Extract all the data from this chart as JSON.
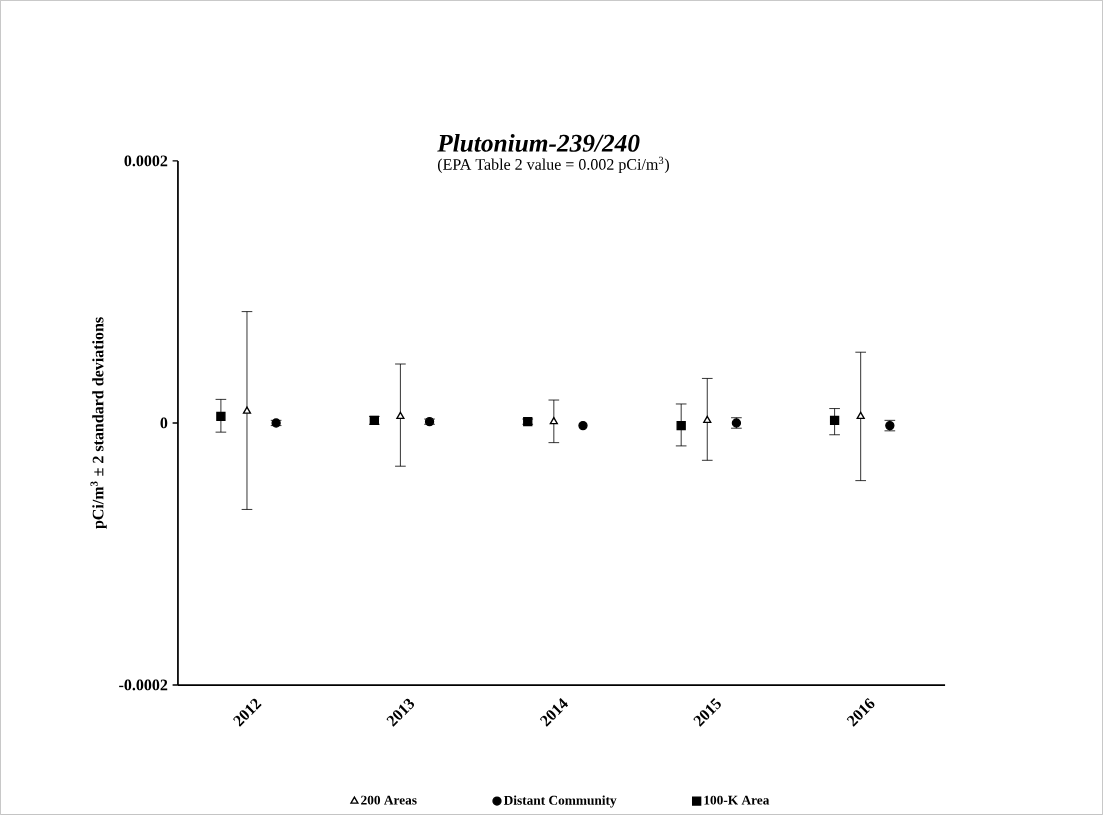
{
  "chart_data": {
    "type": "scatter",
    "title": "Plutonium-239/240",
    "subtitle": "(EPA Table 2 value = 0.002 pCi/m$^{3}$)",
    "ylabel": "pCi/m$^{3}$ ± 2 standard deviations",
    "categories": [
      "2012",
      "2013",
      "2014",
      "2015",
      "2016"
    ],
    "series": [
      {
        "name": "200 Areas",
        "color": "#000000",
        "marker": "triangle",
        "values": [
          9e-06,
          5e-06,
          1e-06,
          2e-06,
          5e-06
        ],
        "errors": [
          [
            -6.6e-05,
            8.5e-05
          ],
          [
            -3.3e-05,
            4.5e-05
          ],
          [
            -1.5e-05,
            1.75e-05
          ],
          [
            -2.85e-05,
            3.4e-05
          ],
          [
            -4.4e-05,
            5.4e-05
          ]
        ]
      },
      {
        "name": "Distant  Community",
        "color": "#000000",
        "marker": "circle",
        "values": [
          0.0,
          1e-06,
          -2e-06,
          0.0,
          -2e-06
        ],
        "errors": [
          [
            -2e-06,
            2e-06
          ],
          [
            -1e-06,
            3e-06
          ],
          null,
          [
            -4e-06,
            4e-06
          ],
          [
            -6e-06,
            2e-06
          ]
        ]
      },
      {
        "name": "100-K Area",
        "color": "#000000",
        "marker": "square",
        "values": [
          5e-06,
          2e-06,
          1e-06,
          -2e-06,
          2e-06
        ],
        "errors": [
          [
            -7e-06,
            1.8e-05
          ],
          [
            -1e-06,
            5e-06
          ],
          [
            -1e-06,
            3e-06
          ],
          [
            -1.75e-05,
            1.45e-05
          ],
          [
            -9e-06,
            1.1e-05
          ]
        ]
      }
    ],
    "ylim": [
      -0.0002,
      0.0002
    ],
    "yticks": [
      -0.0002,
      0,
      0.0002
    ],
    "grid": false,
    "legend": "bottom"
  }
}
